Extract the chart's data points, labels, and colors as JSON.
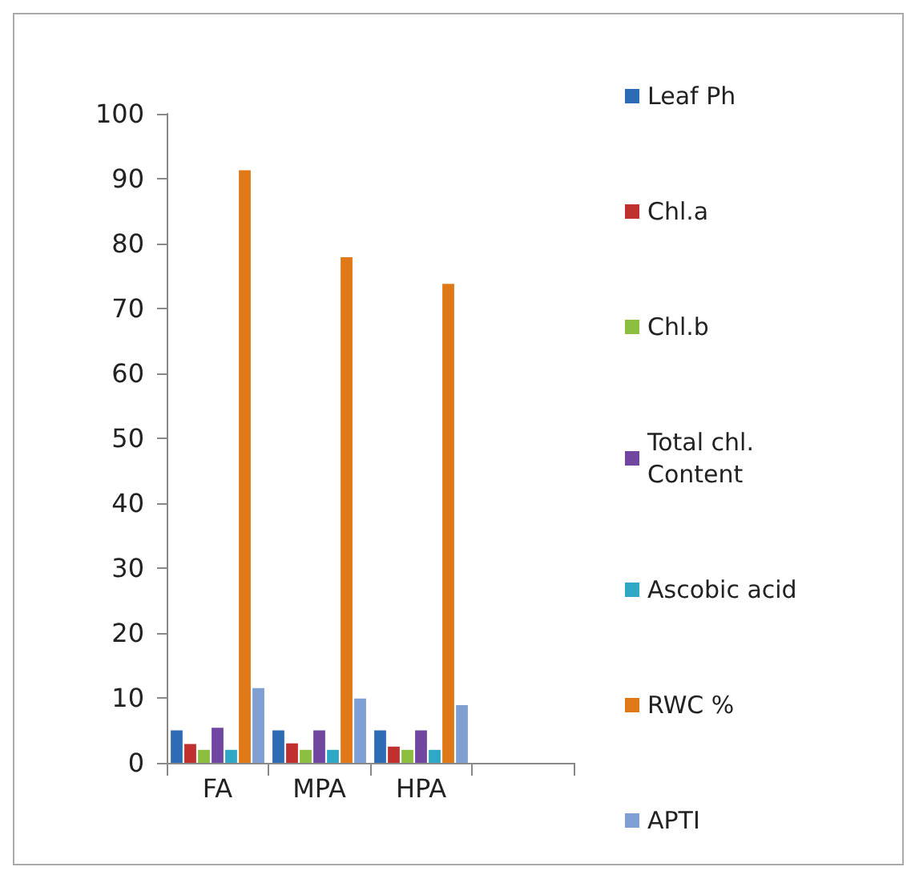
{
  "chart_data": {
    "type": "bar",
    "categories": [
      "FA",
      "MPA",
      "HPA",
      null
    ],
    "series": [
      {
        "name": "Leaf Ph",
        "color": "#2e6bb5",
        "values": [
          5,
          5,
          5,
          null
        ]
      },
      {
        "name": "Chl.a",
        "color": "#c0302e",
        "values": [
          2.9,
          3,
          2.5,
          null
        ]
      },
      {
        "name": "Chl.b",
        "color": "#8cbf3f",
        "values": [
          2,
          2,
          2,
          null
        ]
      },
      {
        "name": "Total chl. Content",
        "color": "#7046a0",
        "values": [
          5.4,
          5,
          5,
          null
        ]
      },
      {
        "name": "Ascobic acid",
        "color": "#2ea8c4",
        "values": [
          2,
          2,
          2,
          null
        ]
      },
      {
        "name": "RWC %",
        "color": "#e07818",
        "values": [
          91.3,
          77.9,
          73.8,
          null
        ]
      },
      {
        "name": "APTI",
        "color": "#7f9fd4",
        "values": [
          11.5,
          9.9,
          8.9,
          null
        ]
      }
    ],
    "ylim": [
      0,
      100
    ],
    "yticks": [
      0,
      10,
      20,
      30,
      40,
      50,
      60,
      70,
      80,
      90,
      100
    ],
    "grid": false,
    "legend": "right"
  }
}
